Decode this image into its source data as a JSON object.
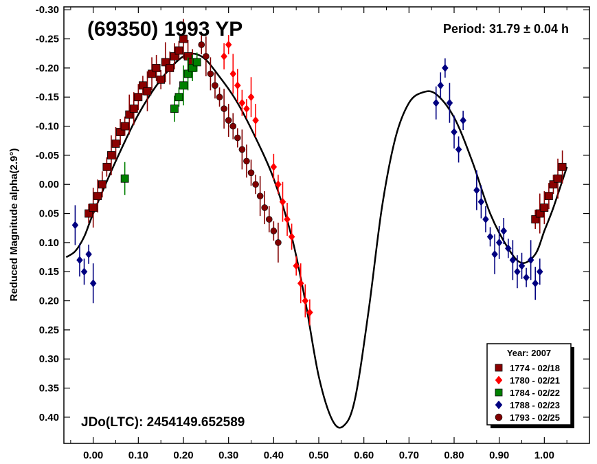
{
  "chart_data": {
    "type": "scatter",
    "title": "(69350) 1993 YP",
    "period_label": "Period: 31.79 ± 0.04 h",
    "epoch_label": "JDo(LTC): 2454149.652589",
    "ylabel": "Reduced Magnitude alpha(2.9°)",
    "xlabel": "",
    "xlim": [
      -0.065,
      1.1
    ],
    "ylim": [
      -0.305,
      0.445
    ],
    "y_inverted": true,
    "x_ticks": [
      "0.00",
      "0.10",
      "0.20",
      "0.30",
      "0.40",
      "0.50",
      "0.60",
      "0.70",
      "0.80",
      "0.90",
      "1.00"
    ],
    "x_tick_values": [
      0,
      0.1,
      0.2,
      0.3,
      0.4,
      0.5,
      0.6,
      0.7,
      0.8,
      0.9,
      1.0
    ],
    "y_ticks": [
      "-0.30",
      "-0.25",
      "-0.20",
      "-0.15",
      "-0.10",
      "-0.05",
      "0.00",
      "0.05",
      "0.10",
      "0.15",
      "0.20",
      "0.25",
      "0.30",
      "0.35",
      "0.40"
    ],
    "y_tick_values": [
      -0.3,
      -0.25,
      -0.2,
      -0.15,
      -0.1,
      -0.05,
      0.0,
      0.05,
      0.1,
      0.15,
      0.2,
      0.25,
      0.3,
      0.35,
      0.4
    ],
    "legend": {
      "title": "Year: 2007",
      "placement": "bottom-right",
      "entries": [
        "1774 - 02/18",
        "1780 - 02/21",
        "1784 - 02/22",
        "1788 - 02/23",
        "1793 - 02/25"
      ]
    },
    "series": [
      {
        "name": "1774 - 02/18",
        "marker": "square",
        "color": "#8b0000",
        "points": [
          [
            -0.01,
            0.05
          ],
          [
            0.0,
            0.04
          ],
          [
            0.01,
            0.02
          ],
          [
            0.02,
            0.0
          ],
          [
            0.03,
            -0.03
          ],
          [
            0.04,
            -0.05
          ],
          [
            0.05,
            -0.07
          ],
          [
            0.06,
            -0.09
          ],
          [
            0.07,
            -0.1
          ],
          [
            0.08,
            -0.12
          ],
          [
            0.09,
            -0.13
          ],
          [
            0.1,
            -0.15
          ],
          [
            0.11,
            -0.17
          ],
          [
            0.12,
            -0.16
          ],
          [
            0.13,
            -0.19
          ],
          [
            0.14,
            -0.2
          ],
          [
            0.15,
            -0.18
          ],
          [
            0.16,
            -0.21
          ],
          [
            0.17,
            -0.2
          ],
          [
            0.18,
            -0.22
          ],
          [
            0.19,
            -0.23
          ],
          [
            0.2,
            -0.25
          ],
          [
            0.21,
            -0.22
          ],
          [
            0.22,
            -0.21
          ],
          [
            0.98,
            0.06
          ],
          [
            0.99,
            0.05
          ],
          [
            1.0,
            0.04
          ],
          [
            1.01,
            0.02
          ],
          [
            1.02,
            0.0
          ],
          [
            1.03,
            -0.01
          ],
          [
            1.04,
            -0.03
          ]
        ]
      },
      {
        "name": "1780 - 02/21",
        "marker": "diamond",
        "color": "#ff0000",
        "points": [
          [
            0.29,
            -0.22
          ],
          [
            0.3,
            -0.24
          ],
          [
            0.31,
            -0.19
          ],
          [
            0.32,
            -0.17
          ],
          [
            0.33,
            -0.14
          ],
          [
            0.34,
            -0.13
          ],
          [
            0.35,
            -0.15
          ],
          [
            0.36,
            -0.11
          ],
          [
            0.4,
            -0.03
          ],
          [
            0.41,
            0.0
          ],
          [
            0.42,
            0.03
          ],
          [
            0.43,
            0.06
          ],
          [
            0.44,
            0.09
          ],
          [
            0.45,
            0.14
          ],
          [
            0.46,
            0.17
          ],
          [
            0.47,
            0.2
          ],
          [
            0.48,
            0.22
          ]
        ]
      },
      {
        "name": "1784 - 02/22",
        "marker": "square",
        "color": "#008000",
        "points": [
          [
            0.07,
            -0.01
          ],
          [
            0.18,
            -0.13
          ],
          [
            0.19,
            -0.15
          ],
          [
            0.2,
            -0.17
          ],
          [
            0.21,
            -0.19
          ],
          [
            0.22,
            -0.2
          ],
          [
            0.23,
            -0.21
          ]
        ]
      },
      {
        "name": "1788 - 02/23",
        "marker": "diamond",
        "color": "#000080",
        "points": [
          [
            -0.04,
            0.07
          ],
          [
            -0.03,
            0.13
          ],
          [
            -0.02,
            0.15
          ],
          [
            -0.01,
            0.12
          ],
          [
            0.0,
            0.17
          ],
          [
            0.76,
            -0.14
          ],
          [
            0.77,
            -0.17
          ],
          [
            0.78,
            -0.2
          ],
          [
            0.79,
            -0.14
          ],
          [
            0.8,
            -0.09
          ],
          [
            0.81,
            -0.06
          ],
          [
            0.82,
            -0.11
          ],
          [
            0.85,
            0.01
          ],
          [
            0.86,
            0.03
          ],
          [
            0.87,
            0.06
          ],
          [
            0.88,
            0.09
          ],
          [
            0.89,
            0.12
          ],
          [
            0.9,
            0.1
          ],
          [
            0.91,
            0.08
          ],
          [
            0.92,
            0.11
          ],
          [
            0.93,
            0.13
          ],
          [
            0.94,
            0.15
          ],
          [
            0.95,
            0.14
          ],
          [
            0.96,
            0.16
          ],
          [
            0.97,
            0.13
          ],
          [
            0.98,
            0.17
          ],
          [
            0.99,
            0.15
          ]
        ]
      },
      {
        "name": "1793 - 02/25",
        "marker": "circle",
        "color": "#800000",
        "points": [
          [
            0.24,
            -0.24
          ],
          [
            0.25,
            -0.22
          ],
          [
            0.26,
            -0.19
          ],
          [
            0.27,
            -0.17
          ],
          [
            0.28,
            -0.15
          ],
          [
            0.29,
            -0.13
          ],
          [
            0.3,
            -0.11
          ],
          [
            0.31,
            -0.1
          ],
          [
            0.32,
            -0.08
          ],
          [
            0.33,
            -0.06
          ],
          [
            0.34,
            -0.04
          ],
          [
            0.35,
            -0.02
          ],
          [
            0.36,
            0.0
          ],
          [
            0.37,
            0.02
          ],
          [
            0.38,
            0.04
          ],
          [
            0.39,
            0.06
          ],
          [
            0.4,
            0.08
          ],
          [
            0.41,
            0.1
          ]
        ]
      }
    ],
    "fit_curve": [
      [
        -0.06,
        0.125
      ],
      [
        -0.04,
        0.115
      ],
      [
        -0.02,
        0.09
      ],
      [
        0.0,
        0.05
      ],
      [
        0.05,
        -0.04
      ],
      [
        0.1,
        -0.12
      ],
      [
        0.15,
        -0.18
      ],
      [
        0.2,
        -0.22
      ],
      [
        0.24,
        -0.22
      ],
      [
        0.28,
        -0.185
      ],
      [
        0.32,
        -0.14
      ],
      [
        0.36,
        -0.08
      ],
      [
        0.4,
        -0.01
      ],
      [
        0.44,
        0.09
      ],
      [
        0.47,
        0.2
      ],
      [
        0.5,
        0.33
      ],
      [
        0.53,
        0.405
      ],
      [
        0.555,
        0.415
      ],
      [
        0.58,
        0.37
      ],
      [
        0.61,
        0.22
      ],
      [
        0.64,
        0.04
      ],
      [
        0.67,
        -0.08
      ],
      [
        0.7,
        -0.14
      ],
      [
        0.73,
        -0.158
      ],
      [
        0.76,
        -0.155
      ],
      [
        0.8,
        -0.115
      ],
      [
        0.84,
        -0.04
      ],
      [
        0.88,
        0.05
      ],
      [
        0.92,
        0.11
      ],
      [
        0.95,
        0.135
      ],
      [
        0.98,
        0.12
      ],
      [
        1.0,
        0.08
      ],
      [
        1.02,
        0.04
      ],
      [
        1.05,
        -0.03
      ]
    ],
    "fit_color": "#000000"
  }
}
